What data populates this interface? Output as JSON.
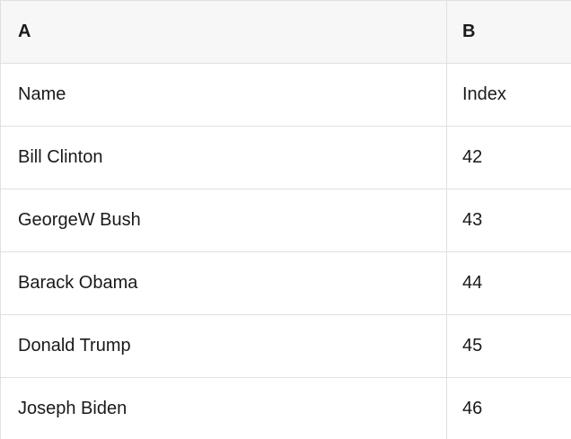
{
  "colors": {
    "header_bg": "#f7f7f7",
    "row_bg": "#ffffff",
    "border": "#e0e0e0",
    "text": "#1a1a1a"
  },
  "header": {
    "col_a": "A",
    "col_b": "B"
  },
  "rows": [
    {
      "a": "Name",
      "b": "Index"
    },
    {
      "a": "Bill Clinton",
      "b": "42"
    },
    {
      "a": "GeorgeW Bush",
      "b": "43"
    },
    {
      "a": "Barack Obama",
      "b": "44"
    },
    {
      "a": "Donald Trump",
      "b": "45"
    },
    {
      "a": "Joseph Biden",
      "b": "46"
    }
  ]
}
